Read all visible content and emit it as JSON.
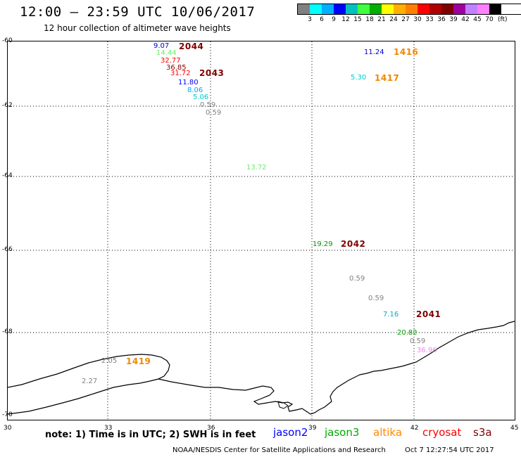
{
  "header": {
    "title": "12:00 – 23:59 UTC 10/06/2017",
    "subtitle": "12 hour collection of altimeter wave heights"
  },
  "legend": {
    "colors": [
      "#808080",
      "#00ffff",
      "#00b0ff",
      "#0000ff",
      "#00c0c0",
      "#40ff40",
      "#00b000",
      "#ffff00",
      "#ffb000",
      "#ff8000",
      "#ff0000",
      "#b00000",
      "#800000",
      "#a000a0",
      "#c080ff",
      "#ff80ff",
      "#000000"
    ],
    "labels": [
      "3",
      "6",
      "9",
      "12",
      "15",
      "18",
      "21",
      "24",
      "27",
      "30",
      "33",
      "36",
      "39",
      "42",
      "45",
      "70"
    ],
    "unit": "(ft)"
  },
  "axes": {
    "x_ticks": [
      "30",
      "33",
      "36",
      "39",
      "42",
      "45"
    ],
    "y_ticks": [
      "-60",
      "-62",
      "-64",
      "-66",
      "-68",
      "-70"
    ]
  },
  "observations": [
    {
      "text": "9.07",
      "color": "#0000cc"
    },
    {
      "text": "14.44",
      "color": "#66ee66"
    },
    {
      "text": "32.77",
      "color": "#ff0000"
    },
    {
      "text": "36.85",
      "color": "#800000"
    },
    {
      "text": "31.72",
      "color": "#ff0000"
    },
    {
      "text": "11.80",
      "color": "#0000ff"
    },
    {
      "text": "8.06",
      "color": "#00aaff"
    },
    {
      "text": "5.06",
      "color": "#00cccc"
    },
    {
      "text": "0.59",
      "color": "#808080"
    },
    {
      "text": "0.59",
      "color": "#808080"
    },
    {
      "text": "11.24",
      "color": "#0000cc"
    },
    {
      "text": "5.30",
      "color": "#00cccc"
    },
    {
      "text": "13.72",
      "color": "#66ee66"
    },
    {
      "text": "19.29",
      "color": "#009900"
    },
    {
      "text": "0.59",
      "color": "#808080"
    },
    {
      "text": "0.59",
      "color": "#808080"
    },
    {
      "text": "7.16",
      "color": "#00aacc"
    },
    {
      "text": "20.82",
      "color": "#009900"
    },
    {
      "text": "0.59",
      "color": "#808080"
    },
    {
      "text": "36.96",
      "color": "#ee88ee"
    },
    {
      "text": "2.05",
      "color": "#808080"
    },
    {
      "text": "2.27",
      "color": "#808080"
    }
  ],
  "passes": [
    {
      "text": "2044",
      "color": "#800000"
    },
    {
      "text": "2043",
      "color": "#800000"
    },
    {
      "text": "1416",
      "color": "#ee8800"
    },
    {
      "text": "1417",
      "color": "#ee8800"
    },
    {
      "text": "2042",
      "color": "#800000"
    },
    {
      "text": "2041",
      "color": "#800000"
    },
    {
      "text": "1419",
      "color": "#ee8800"
    }
  ],
  "footer": {
    "note": "note: 1) Time is in UTC; 2) SWH is in feet",
    "satellites": [
      {
        "name": "jason2",
        "color": "#0000ff"
      },
      {
        "name": "jason3",
        "color": "#00aa00"
      },
      {
        "name": "altika",
        "color": "#ff8800"
      },
      {
        "name": "cryosat",
        "color": "#ff0000"
      },
      {
        "name": "s3a",
        "color": "#800000"
      }
    ],
    "credit": "NOAA/NESDIS Center for Satellite Applications and Research",
    "timestamp": "Oct  7 12:27:54 UTC 2017"
  }
}
